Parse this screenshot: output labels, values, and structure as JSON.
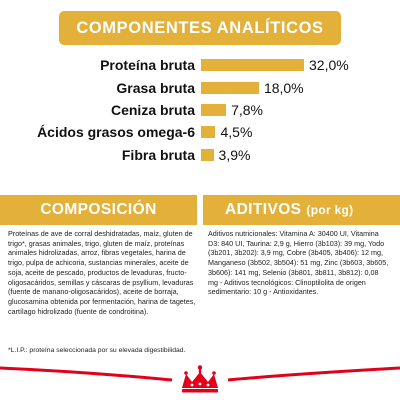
{
  "header": {
    "title": "COMPONENTES ANALÍTICOS"
  },
  "nutrients": [
    {
      "label": "Proteína bruta",
      "value": "32,0%",
      "pct": 32.0
    },
    {
      "label": "Grasa bruta",
      "value": "18,0%",
      "pct": 18.0
    },
    {
      "label": "Ceniza bruta",
      "value": "7,8%",
      "pct": 7.8
    },
    {
      "label": "Ácidos grasos omega-6",
      "value": "4,5%",
      "pct": 4.5
    },
    {
      "label": "Fibra bruta",
      "value": "3,9%",
      "pct": 3.9
    }
  ],
  "composition": {
    "title": "COMPOSICIÓN",
    "text": "Proteínas de ave de corral deshidratadas, maíz, gluten de trigo*, grasas animales, trigo, gluten de maíz, proteínas animales hidrolizadas, arroz, fibras vegetales, harina de trigo, pulpa de achicoria, sustancias minerales, aceite de soja, aceite de pescado, productos de levaduras, fructo-oligosacáridos, semillas y cáscaras de psyllium, levaduras (fuente de manano-oligosacáridos), aceite de borraja, glucosamina obtenida por fermentación, harina de tagetes, cartílago hidrolizado (fuente de condroitina).",
    "note": "*L.I.P.: proteína seleccionada por su elevada digestibilidad."
  },
  "additives": {
    "title": "ADITIVOS",
    "unit": "(por kg)",
    "text": "Aditivos nutricionales: Vitamina A: 30400 UI, Vitamina D3: 840 UI, Taurina: 2,9 g, Hierro (3b103): 39 mg, Yodo (3b201, 3b202): 3,9 mg, Cobre (3b405, 3b406): 12 mg, Manganeso (3b502, 3b504): 51 mg, Zinc (3b603, 3b605, 3b606): 141 mg, Selenio (3b801, 3b811, 3b812): 0,08 mg - Aditivos tecnológicos: Clinoptilolita de origen sedimentario: 10 g - Antioxidantes."
  },
  "colors": {
    "accent": "#E3B13A",
    "brand_red": "#E2001A"
  },
  "logo_icon": "royal-canin-crown-logo"
}
